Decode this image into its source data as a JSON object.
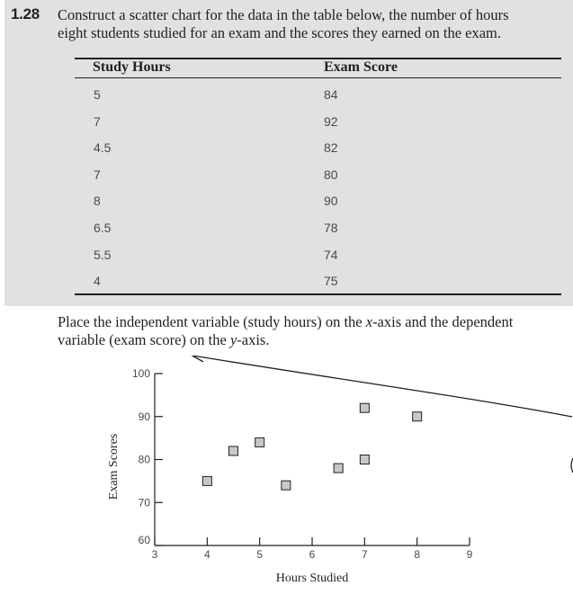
{
  "problem": {
    "number": "1.28",
    "line1": "Construct a scatter chart for the data in the table below, the number of hours",
    "line2": "eight students studied for an exam and the scores they earned on the exam."
  },
  "table": {
    "headers": [
      "Study Hours",
      "Exam Score"
    ],
    "rows": [
      [
        "5",
        "84"
      ],
      [
        "7",
        "92"
      ],
      [
        "4.5",
        "82"
      ],
      [
        "7",
        "80"
      ],
      [
        "8",
        "90"
      ],
      [
        "6.5",
        "78"
      ],
      [
        "5.5",
        "74"
      ],
      [
        "4",
        "75"
      ]
    ]
  },
  "instruction": {
    "line1_a": "Place the independent variable (study hours) on the ",
    "line1_x": "x",
    "line1_b": "-axis and the dependent",
    "line2_a": "variable (exam score) on the ",
    "line2_y": "y",
    "line2_b": "-axis."
  },
  "chart_data": {
    "type": "scatter",
    "xlabel": "Hours Studied",
    "ylabel": "Exam Scores",
    "xlim": [
      3,
      9
    ],
    "ylim": [
      60,
      100
    ],
    "xticks": [
      3,
      4,
      5,
      6,
      7,
      8,
      9
    ],
    "yticks": [
      60,
      70,
      80,
      90,
      100
    ],
    "grid": false,
    "points": [
      {
        "x": 5,
        "y": 84
      },
      {
        "x": 7,
        "y": 92
      },
      {
        "x": 4.5,
        "y": 82
      },
      {
        "x": 7,
        "y": 80
      },
      {
        "x": 8,
        "y": 90
      },
      {
        "x": 6.5,
        "y": 78
      },
      {
        "x": 5.5,
        "y": 74
      },
      {
        "x": 4,
        "y": 75
      }
    ],
    "marker_color": "#c8c8c8",
    "marker_stroke": "#231f20"
  }
}
